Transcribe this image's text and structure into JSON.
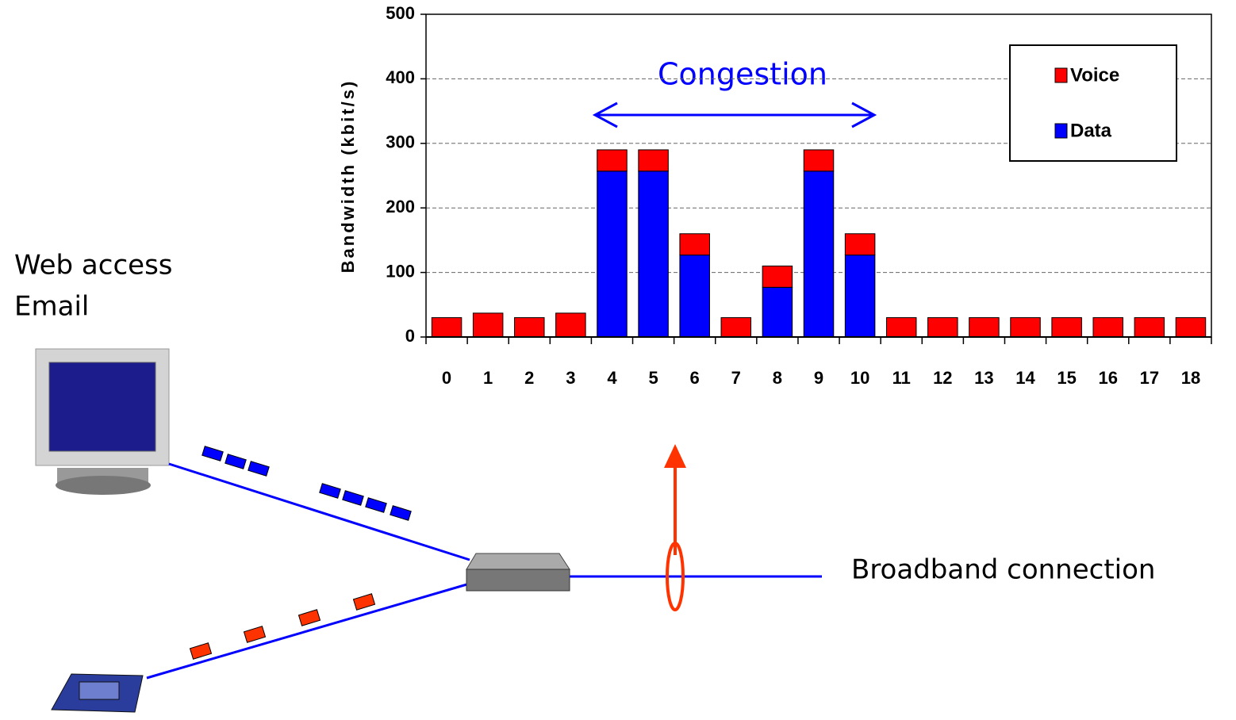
{
  "chart_data": {
    "type": "stacked_bar",
    "y_label": "Bandwidth (kbit/s)",
    "annotation": "Congestion",
    "categories": [
      "0",
      "1",
      "2",
      "3",
      "4",
      "5",
      "6",
      "7",
      "8",
      "9",
      "10",
      "11",
      "12",
      "13",
      "14",
      "15",
      "16",
      "17",
      "18"
    ],
    "series": [
      {
        "name": "Voice",
        "color": "#ff0000",
        "values": [
          30,
          37,
          30,
          37,
          33,
          33,
          33,
          30,
          33,
          33,
          33,
          30,
          30,
          30,
          30,
          30,
          30,
          30,
          30
        ]
      },
      {
        "name": "Data",
        "color": "#0000ff",
        "values": [
          0,
          0,
          0,
          0,
          257,
          257,
          127,
          0,
          77,
          257,
          127,
          0,
          0,
          0,
          0,
          0,
          0,
          0,
          0
        ]
      }
    ],
    "ylim": [
      0,
      500
    ],
    "yticks": [
      0,
      100,
      200,
      300,
      400,
      500
    ],
    "grid": true,
    "legend": "upper right"
  },
  "diagram": {
    "client_labels": [
      "Web access",
      "Email"
    ],
    "link_label": "Broadband connection"
  }
}
